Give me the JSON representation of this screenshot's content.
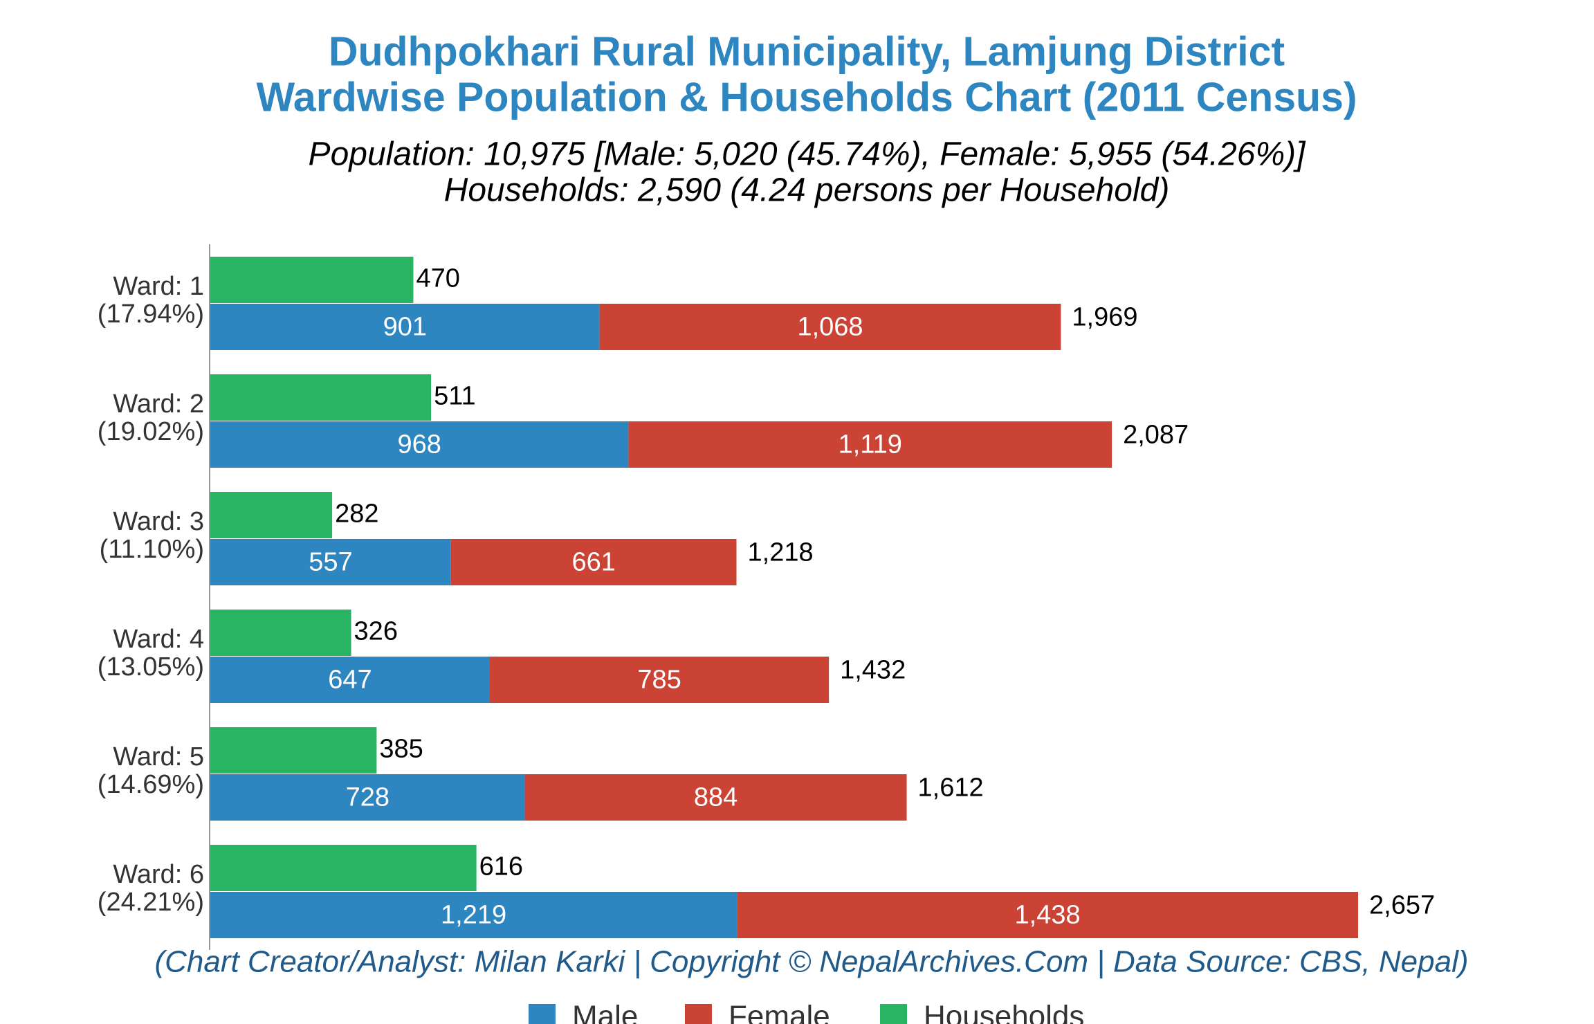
{
  "chart_data": {
    "type": "bar",
    "orientation": "horizontal",
    "title": [
      "Dudhpokhari Rural Municipality, Lamjung District",
      "Wardwise Population & Households Chart (2011 Census)"
    ],
    "subtitle": [
      "Population: 10,975 [Male: 5,020 (45.74%), Female: 5,955 (54.26%)]",
      "Households: 2,590 (4.24 persons per Household)"
    ],
    "annotation": "(Chart Creator/Analyst: Milan Karki | Copyright © NepalArchives.Com | Data Source: CBS, Nepal)",
    "categories": [
      "Ward: 1",
      "Ward: 2",
      "Ward: 3",
      "Ward: 4",
      "Ward: 5",
      "Ward: 6"
    ],
    "category_shares": [
      "(17.94%)",
      "(19.02%)",
      "(11.10%)",
      "(13.05%)",
      "(14.69%)",
      "(24.21%)"
    ],
    "series": [
      {
        "name": "Male",
        "color": "#2e86c1",
        "stack": "population",
        "values": [
          901,
          968,
          557,
          647,
          728,
          1219
        ],
        "value_labels": [
          "901",
          "968",
          "557",
          "647",
          "728",
          "1,219"
        ]
      },
      {
        "name": "Female",
        "color": "#cb4335",
        "stack": "population",
        "values": [
          1068,
          1119,
          661,
          785,
          884,
          1438
        ],
        "value_labels": [
          "1,068",
          "1,119",
          "661",
          "785",
          "884",
          "1,438"
        ]
      },
      {
        "name": "Households",
        "color": "#28b463",
        "stack": "households",
        "values": [
          470,
          511,
          282,
          326,
          385,
          616
        ]
      }
    ],
    "totals": [
      1969,
      2087,
      1218,
      1432,
      1612,
      2657
    ],
    "total_labels": [
      "1,969",
      "2,087",
      "1,218",
      "1,432",
      "1,612",
      "2,657"
    ]
  }
}
